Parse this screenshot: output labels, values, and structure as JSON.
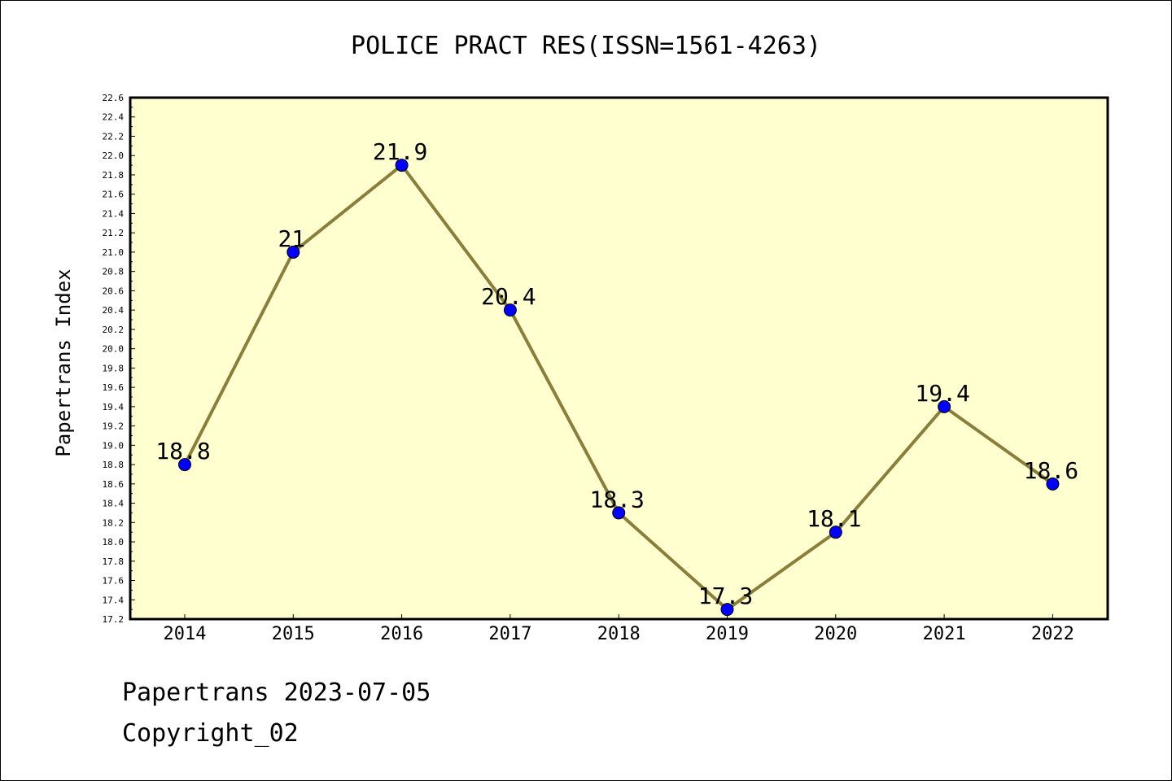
{
  "chart_data": {
    "type": "line",
    "title": "POLICE PRACT RES(ISSN=1561-4263)",
    "xlabel": "",
    "ylabel": "Papertrans Index",
    "categories": [
      "2014",
      "2015",
      "2016",
      "2017",
      "2018",
      "2019",
      "2020",
      "2021",
      "2022"
    ],
    "series": [
      {
        "values": [
          18.8,
          21.0,
          21.9,
          20.4,
          18.3,
          17.3,
          18.1,
          19.4,
          18.6
        ],
        "labels": [
          "18.8",
          "21",
          "21.9",
          "20.4",
          "18.3",
          "17.3",
          "18.1",
          "19.4",
          "18.6"
        ]
      }
    ],
    "ylim": [
      17.2,
      22.6
    ],
    "ytick_step": 0.2,
    "grid": false,
    "legend": "none",
    "colors": {
      "plot_background": "#FFFFD0",
      "line": "#8B7D3A",
      "marker": "#0000FF"
    }
  },
  "footer": {
    "line1": "Papertrans 2023-07-05",
    "line2": "Copyright_02"
  }
}
